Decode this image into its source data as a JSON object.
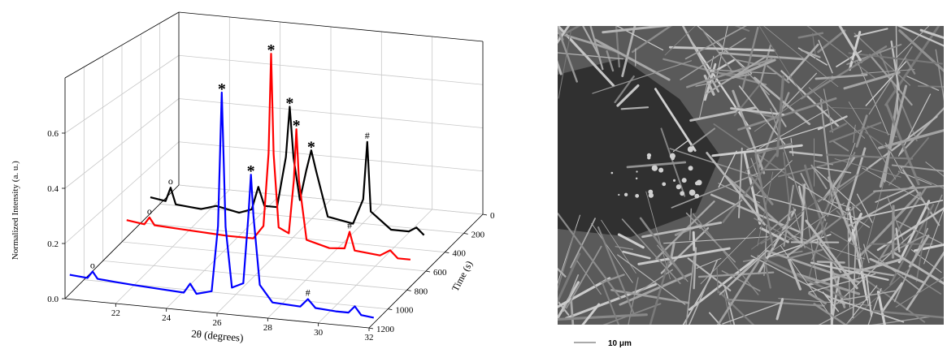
{
  "chart_data": {
    "type": "waterfall",
    "xlabel": "2θ (degrees)",
    "ylabel": "Normalized Intensity (a. u.)",
    "zlabel": "Time (s)",
    "xlim": [
      20,
      32
    ],
    "xticks": [
      22,
      24,
      26,
      28,
      30,
      32
    ],
    "ylim": [
      0,
      0.8
    ],
    "yticks": [
      {
        "value": 0,
        "label": "0.0"
      },
      0.2,
      0.4,
      0.6
    ],
    "zlim": [
      0,
      1200
    ],
    "zticks": [
      0,
      200,
      400,
      600,
      800,
      1000,
      1200
    ],
    "grid": true,
    "series": [
      {
        "color": "#0000ff",
        "z": 1150,
        "x": [
          20,
          20.7,
          20.9,
          21.1,
          21.8,
          22.5,
          23.5,
          24.5,
          24.75,
          25.0,
          25.6,
          25.85,
          26.0,
          26.15,
          26.4,
          26.85,
          27.05,
          27.15,
          27.25,
          27.5,
          28.0,
          29.1,
          29.4,
          29.7,
          30.5,
          31.0,
          31.25,
          31.5,
          32
        ],
        "values": [
          0.07,
          0.065,
          0.09,
          0.065,
          0.06,
          0.055,
          0.05,
          0.045,
          0.08,
          0.045,
          0.06,
          0.3,
          0.79,
          0.3,
          0.08,
          0.1,
          0.35,
          0.5,
          0.35,
          0.1,
          0.04,
          0.035,
          0.065,
          0.035,
          0.03,
          0.03,
          0.055,
          0.025,
          0.02
        ],
        "markers": [
          {
            "x": 20.9,
            "label": "o"
          },
          {
            "x": 26.0,
            "label": "*"
          },
          {
            "x": 27.15,
            "label": "*"
          },
          {
            "x": 29.4,
            "label": "#"
          }
        ]
      },
      {
        "color": "#ff0000",
        "z": 550,
        "x": [
          20,
          20.7,
          20.9,
          21.1,
          22,
          23,
          24,
          25.0,
          25.4,
          25.6,
          25.7,
          25.8,
          26.0,
          26.4,
          26.6,
          26.7,
          26.8,
          27.1,
          28.0,
          28.6,
          28.8,
          29.0,
          30.0,
          30.4,
          30.7,
          31.2
        ],
        "values": [
          0.07,
          0.06,
          0.09,
          0.06,
          0.055,
          0.05,
          0.045,
          0.045,
          0.1,
          0.4,
          0.81,
          0.4,
          0.1,
          0.08,
          0.3,
          0.51,
          0.3,
          0.06,
          0.035,
          0.04,
          0.11,
          0.035,
          0.025,
          0.05,
          0.02,
          0.02
        ],
        "markers": [
          {
            "x": 20.9,
            "label": "o"
          },
          {
            "x": 25.7,
            "label": "*"
          },
          {
            "x": 26.7,
            "label": "*"
          },
          {
            "x": 28.8,
            "label": "#"
          }
        ]
      },
      {
        "color": "#000000",
        "z": 300,
        "x": [
          20,
          20.6,
          20.8,
          21.0,
          22.0,
          22.6,
          23.5,
          24.0,
          24.26,
          24.5,
          25.0,
          25.35,
          25.5,
          25.65,
          25.9,
          26.15,
          26.35,
          26.55,
          27.0,
          28.0,
          28.4,
          28.56,
          28.7,
          29.5,
          30.2,
          30.5,
          30.8
        ],
        "values": [
          0.07,
          0.06,
          0.12,
          0.05,
          0.04,
          0.06,
          0.04,
          0.06,
          0.16,
          0.08,
          0.08,
          0.3,
          0.52,
          0.3,
          0.12,
          0.25,
          0.34,
          0.25,
          0.06,
          0.04,
          0.15,
          0.4,
          0.1,
          0.03,
          0.03,
          0.05,
          0.02
        ],
        "markers": [
          {
            "x": 20.8,
            "label": "o"
          },
          {
            "x": 25.5,
            "label": "*"
          },
          {
            "x": 26.35,
            "label": "*"
          },
          {
            "x": 28.56,
            "label": "#"
          }
        ]
      }
    ]
  },
  "sem": {
    "scale_label": "10 μm"
  }
}
